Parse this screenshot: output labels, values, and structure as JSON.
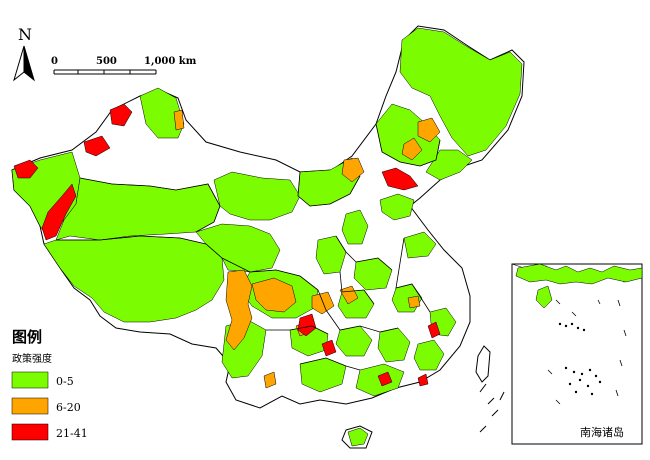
{
  "north_arrow": {
    "label": "N"
  },
  "scale_bar": {
    "labels": [
      "0",
      "500",
      "1,000 km"
    ]
  },
  "legend": {
    "title": "图例",
    "subtitle": "政策强度",
    "items": [
      {
        "label": "0-5",
        "color": "#7CFC00"
      },
      {
        "label": "6-20",
        "color": "#FFA500"
      },
      {
        "label": "21-41",
        "color": "#FF0000"
      }
    ]
  },
  "inset": {
    "label": "南海诸岛"
  },
  "colors": {
    "low": "#7CFC00",
    "mid": "#FFA500",
    "high": "#FF0000",
    "boundary": "#000000",
    "background": "#FFFFFF"
  }
}
